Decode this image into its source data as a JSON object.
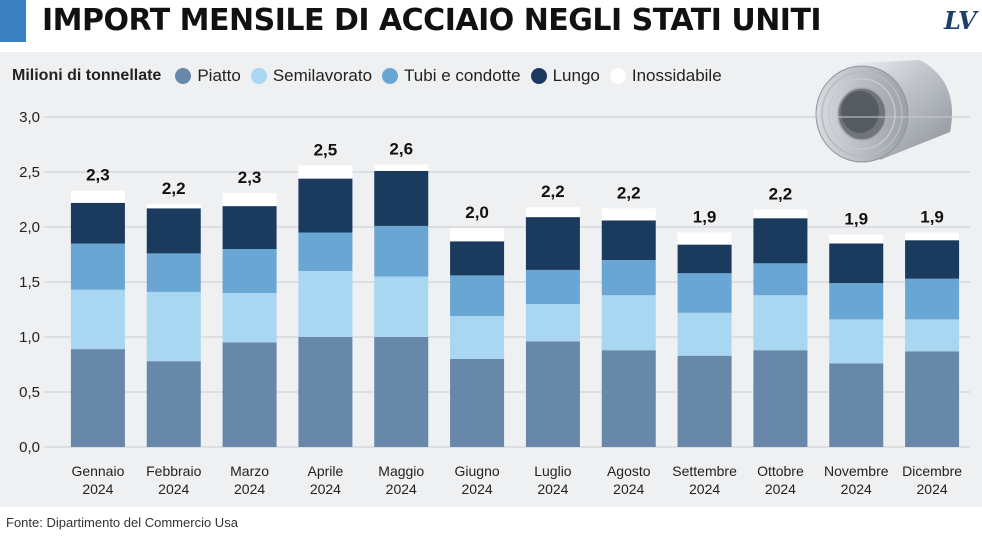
{
  "title": "IMPORT MENSILE DI ACCIAIO NEGLI STATI UNITI",
  "logo": "LV",
  "legend_title": "Milioni di tonnellate",
  "source": "Fonte: Dipartimento del Commercio Usa",
  "colors": {
    "Piatto": "#6788a8",
    "Semilavorato": "#a9d6f0",
    "Tubi e condotte": "#6aa6d3",
    "Lungo": "#1a3a5e",
    "Inossidabile": "#ffffff",
    "accent": "#3a7fbf",
    "background": "#eef0f2"
  },
  "chart_data": {
    "type": "bar",
    "stacked": true,
    "categories": [
      "Gennaio 2024",
      "Febbraio 2024",
      "Marzo 2024",
      "Aprile 2024",
      "Maggio 2024",
      "Giugno 2024",
      "Luglio 2024",
      "Agosto 2024",
      "Settembre 2024",
      "Ottobre 2024",
      "Novembre 2024",
      "Dicembre 2024"
    ],
    "category_lines": [
      [
        "Gennaio",
        "2024"
      ],
      [
        "Febbraio",
        "2024"
      ],
      [
        "Marzo",
        "2024"
      ],
      [
        "Aprile",
        "2024"
      ],
      [
        "Maggio",
        "2024"
      ],
      [
        "Giugno",
        "2024"
      ],
      [
        "Luglio",
        "2024"
      ],
      [
        "Agosto",
        "2024"
      ],
      [
        "Settembre",
        "2024"
      ],
      [
        "Ottobre",
        "2024"
      ],
      [
        "Novembre",
        "2024"
      ],
      [
        "Dicembre",
        "2024"
      ]
    ],
    "series": [
      {
        "name": "Piatto",
        "values": [
          0.89,
          0.78,
          0.95,
          1.0,
          1.0,
          0.8,
          0.96,
          0.88,
          0.83,
          0.88,
          0.76,
          0.87
        ]
      },
      {
        "name": "Semilavorato",
        "values": [
          0.54,
          0.63,
          0.45,
          0.6,
          0.55,
          0.39,
          0.34,
          0.5,
          0.39,
          0.5,
          0.4,
          0.29
        ]
      },
      {
        "name": "Tubi e condotte",
        "values": [
          0.42,
          0.35,
          0.4,
          0.35,
          0.46,
          0.37,
          0.31,
          0.32,
          0.36,
          0.29,
          0.33,
          0.37
        ]
      },
      {
        "name": "Lungo",
        "values": [
          0.37,
          0.41,
          0.39,
          0.49,
          0.5,
          0.31,
          0.48,
          0.36,
          0.26,
          0.41,
          0.36,
          0.35
        ]
      },
      {
        "name": "Inossidabile",
        "values": [
          0.11,
          0.04,
          0.12,
          0.12,
          0.06,
          0.12,
          0.09,
          0.11,
          0.11,
          0.08,
          0.08,
          0.07
        ]
      }
    ],
    "totals": [
      "2,3",
      "2,2",
      "2,3",
      "2,5",
      "2,6",
      "2,0",
      "2,2",
      "2,2",
      "1,9",
      "2,2",
      "1,9",
      "1,9"
    ],
    "y_ticks": [
      "0,0",
      "0,5",
      "1,0",
      "1,5",
      "2,0",
      "2,5",
      "3,0"
    ],
    "ylim": [
      0,
      3.0
    ],
    "grid": true,
    "legend_position": "top-left"
  }
}
